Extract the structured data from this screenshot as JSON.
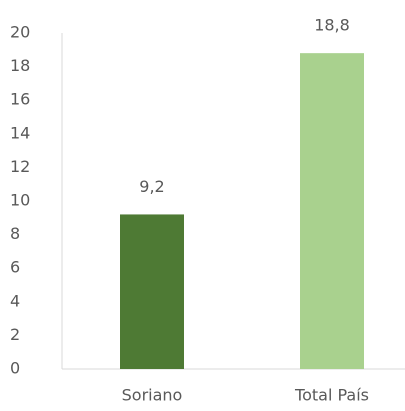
{
  "chart_data": {
    "type": "bar",
    "categories": [
      "Soriano",
      "Total País"
    ],
    "values": [
      9.2,
      18.8
    ],
    "value_labels": [
      "9,2",
      "18,8"
    ],
    "colors": [
      "#4e7a34",
      "#a9d18e"
    ],
    "ylim": [
      0,
      20
    ],
    "yticks": [
      0,
      2,
      4,
      6,
      8,
      10,
      12,
      14,
      16,
      18,
      20
    ],
    "grid": false
  }
}
